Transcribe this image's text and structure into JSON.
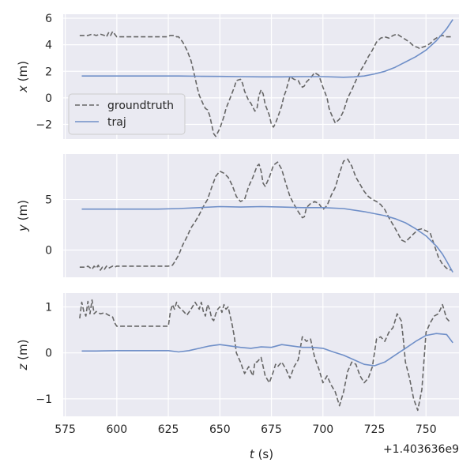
{
  "chart_data": {
    "type": "line",
    "shared_x": {
      "label_var": "t",
      "label_unit": " (s)",
      "xlim": [
        574,
        766
      ],
      "ticks": [
        575,
        600,
        625,
        650,
        675,
        700,
        725,
        750
      ],
      "tick_labels": [
        "575",
        "600",
        "625",
        "650",
        "675",
        "700",
        "725",
        "750"
      ],
      "offset_text": "+1.403636e9"
    },
    "colors": {
      "groundtruth": "#666666",
      "traj": "#6f8fc8",
      "axes_bg": "#eaeaf2",
      "grid": "#ffffff"
    },
    "legend": {
      "placement": "lower-left of top panel",
      "entries": [
        {
          "label": "groundtruth",
          "style": "dashed"
        },
        {
          "label": "traj",
          "style": "solid"
        }
      ]
    },
    "panels": [
      {
        "ylabel_var": "x",
        "ylabel_unit": " (m)",
        "ylim": [
          -3.1,
          6.3
        ],
        "yticks": [
          -2,
          0,
          2,
          4,
          6
        ],
        "ytick_labels": [
          "−2",
          "0",
          "2",
          "4",
          "6"
        ],
        "series": [
          {
            "name": "groundtruth",
            "x": [
              582,
              586,
              588,
              590,
              592,
              594,
              595,
              596,
              597,
              598,
              600,
              605,
              610,
              615,
              620,
              624,
              626,
              628,
              629,
              630,
              632,
              634,
              636,
              638,
              639,
              640,
              642,
              643,
              644,
              645,
              646,
              647,
              648,
              649,
              650,
              652,
              653,
              654,
              656,
              657,
              658,
              660,
              661,
              662,
              664,
              665,
              666,
              667,
              668,
              669,
              670,
              671,
              672,
              674,
              675,
              676,
              677,
              678,
              680,
              681,
              682,
              684,
              686,
              688,
              689,
              690,
              691,
              692,
              694,
              696,
              698,
              700,
              702,
              703,
              704,
              706,
              708,
              710,
              711,
              712,
              714,
              716,
              718,
              720,
              722,
              724,
              726,
              728,
              730,
              732,
              734,
              736,
              738,
              740,
              742,
              744,
              746,
              747,
              748,
              750,
              752,
              754,
              756,
              758,
              760,
              762
            ],
            "y": [
              4.7,
              4.7,
              4.8,
              4.7,
              4.8,
              4.7,
              4.6,
              4.9,
              4.7,
              5.0,
              4.6,
              4.6,
              4.6,
              4.6,
              4.6,
              4.6,
              4.7,
              4.7,
              4.6,
              4.6,
              4.2,
              3.6,
              2.8,
              1.5,
              0.8,
              0.2,
              -0.5,
              -0.8,
              -0.9,
              -1.3,
              -2.0,
              -2.7,
              -2.9,
              -2.6,
              -2.3,
              -1.4,
              -0.8,
              -0.4,
              0.4,
              0.8,
              1.3,
              1.4,
              1.1,
              0.5,
              -0.2,
              -0.4,
              -0.7,
              -1.0,
              -0.8,
              0.2,
              0.6,
              0.3,
              -0.5,
              -1.3,
              -2.0,
              -2.2,
              -1.9,
              -1.5,
              -0.6,
              0.1,
              0.5,
              1.6,
              1.4,
              1.3,
              1.0,
              0.8,
              0.9,
              1.2,
              1.5,
              1.9,
              1.7,
              0.8,
              0.0,
              -0.8,
              -1.2,
              -1.9,
              -1.6,
              -1.0,
              -0.5,
              0.0,
              0.6,
              1.3,
              2.0,
              2.5,
              3.1,
              3.6,
              4.2,
              4.5,
              4.6,
              4.5,
              4.7,
              4.8,
              4.6,
              4.4,
              4.2,
              3.9,
              3.8,
              3.7,
              3.8,
              3.9,
              4.1,
              4.4,
              4.6,
              4.7,
              4.6,
              4.6
            ]
          },
          {
            "name": "traj",
            "x": [
              583,
              600,
              620,
              630,
              640,
              650,
              660,
              670,
              680,
              690,
              700,
              710,
              715,
              720,
              725,
              730,
              735,
              740,
              745,
              750,
              755,
              760,
              763
            ],
            "y": [
              1.65,
              1.65,
              1.65,
              1.65,
              1.63,
              1.62,
              1.6,
              1.58,
              1.58,
              1.6,
              1.6,
              1.55,
              1.58,
              1.65,
              1.8,
              2.0,
              2.3,
              2.7,
              3.1,
              3.6,
              4.3,
              5.2,
              5.9
            ]
          }
        ]
      },
      {
        "ylabel_var": "y",
        "ylabel_unit": " (m)",
        "ylim": [
          -2.7,
          9.5
        ],
        "yticks": [
          0,
          5
        ],
        "ytick_labels": [
          "0",
          "5"
        ],
        "series": [
          {
            "name": "groundtruth",
            "x": [
              582,
              585,
              586,
              588,
              589,
              590,
              591,
              592,
              593,
              594,
              595,
              596,
              597,
              598,
              599,
              600,
              602,
              605,
              610,
              615,
              620,
              625,
              627,
              628,
              630,
              632,
              634,
              636,
              638,
              640,
              642,
              644,
              646,
              648,
              650,
              652,
              654,
              656,
              658,
              660,
              662,
              664,
              666,
              668,
              669,
              670,
              671,
              672,
              674,
              676,
              678,
              680,
              682,
              684,
              686,
              688,
              690,
              691,
              692,
              694,
              696,
              698,
              700,
              702,
              704,
              706,
              708,
              710,
              712,
              714,
              716,
              718,
              720,
              722,
              724,
              726,
              728,
              730,
              732,
              734,
              736,
              738,
              740,
              742,
              744,
              746,
              748,
              750,
              752,
              754,
              756,
              758,
              760,
              762
            ],
            "y": [
              -1.7,
              -1.7,
              -1.6,
              -1.9,
              -1.6,
              -1.8,
              -1.5,
              -2.0,
              -1.7,
              -1.9,
              -1.6,
              -1.8,
              -1.7,
              -1.6,
              -1.7,
              -1.6,
              -1.6,
              -1.6,
              -1.6,
              -1.6,
              -1.6,
              -1.6,
              -1.5,
              -1.2,
              -0.5,
              0.5,
              1.3,
              2.2,
              2.8,
              3.5,
              4.3,
              5.0,
              6.2,
              7.3,
              7.8,
              7.6,
              7.2,
              6.4,
              5.3,
              4.8,
              5.0,
              6.3,
              7.2,
              8.3,
              8.5,
              7.8,
              6.6,
              6.3,
              7.2,
              8.4,
              8.7,
              8.0,
              6.6,
              5.3,
              4.5,
              3.8,
              3.2,
              3.3,
              4.2,
              4.6,
              4.8,
              4.6,
              4.0,
              4.4,
              5.4,
              6.2,
              7.6,
              8.8,
              9.0,
              8.3,
              7.2,
              6.5,
              5.8,
              5.3,
              5.0,
              4.8,
              4.5,
              4.0,
              3.2,
              2.5,
              1.8,
              1.0,
              0.8,
              1.2,
              1.6,
              2.0,
              2.1,
              1.9,
              1.7,
              0.5,
              -0.7,
              -1.4,
              -1.8,
              -2.0
            ]
          },
          {
            "name": "traj",
            "x": [
              583,
              600,
              620,
              630,
              640,
              650,
              660,
              670,
              680,
              690,
              700,
              710,
              720,
              730,
              735,
              740,
              745,
              750,
              755,
              758,
              760,
              763
            ],
            "y": [
              4.05,
              4.05,
              4.05,
              4.1,
              4.2,
              4.3,
              4.25,
              4.3,
              4.25,
              4.2,
              4.2,
              4.1,
              3.8,
              3.4,
              3.1,
              2.7,
              2.1,
              1.4,
              0.4,
              -0.4,
              -1.1,
              -2.2
            ]
          }
        ]
      },
      {
        "ylabel_var": "z",
        "ylabel_unit": " (m)",
        "ylim": [
          -1.38,
          1.3
        ],
        "yticks": [
          -1,
          0,
          1
        ],
        "ytick_labels": [
          "−1",
          "0",
          "1"
        ],
        "series": [
          {
            "name": "groundtruth",
            "x": [
              582,
              583,
              584,
              585,
              586,
              587,
              588,
              589,
              590,
              592,
              594,
              596,
              597,
              598,
              599,
              600,
              605,
              610,
              615,
              620,
              625,
              626,
              627,
              628,
              629,
              630,
              632,
              634,
              636,
              638,
              640,
              641,
              642,
              643,
              644,
              645,
              646,
              647,
              648,
              649,
              650,
              651,
              652,
              653,
              654,
              655,
              656,
              657,
              658,
              660,
              662,
              664,
              666,
              667,
              668,
              670,
              671,
              672,
              674,
              676,
              677,
              678,
              680,
              682,
              684,
              686,
              688,
              690,
              692,
              694,
              696,
              698,
              700,
              702,
              704,
              706,
              708,
              710,
              712,
              714,
              716,
              718,
              720,
              722,
              724,
              726,
              728,
              730,
              732,
              734,
              736,
              738,
              739,
              740,
              742,
              744,
              746,
              748,
              750,
              752,
              754,
              756,
              758,
              760,
              762
            ],
            "y": [
              0.75,
              1.1,
              0.9,
              0.8,
              1.12,
              0.85,
              1.15,
              0.85,
              0.9,
              0.85,
              0.87,
              0.82,
              0.8,
              0.78,
              0.65,
              0.58,
              0.58,
              0.58,
              0.58,
              0.58,
              0.58,
              0.9,
              1.05,
              0.95,
              1.1,
              1.0,
              0.92,
              0.82,
              0.95,
              1.1,
              0.95,
              1.1,
              0.9,
              0.8,
              1.05,
              0.95,
              0.75,
              0.7,
              0.85,
              0.95,
              1.0,
              0.88,
              1.05,
              0.95,
              1.0,
              0.8,
              0.6,
              0.35,
              0.0,
              -0.2,
              -0.45,
              -0.3,
              -0.5,
              -0.2,
              -0.2,
              -0.1,
              -0.3,
              -0.5,
              -0.65,
              -0.4,
              -0.25,
              -0.3,
              -0.2,
              -0.35,
              -0.55,
              -0.3,
              -0.15,
              0.35,
              0.25,
              0.3,
              -0.1,
              -0.35,
              -0.65,
              -0.5,
              -0.7,
              -0.85,
              -1.15,
              -0.85,
              -0.4,
              -0.2,
              -0.25,
              -0.5,
              -0.65,
              -0.55,
              -0.3,
              0.3,
              0.35,
              0.25,
              0.45,
              0.55,
              0.85,
              0.7,
              0.3,
              -0.2,
              -0.55,
              -1.0,
              -1.25,
              -0.8,
              0.45,
              0.65,
              0.8,
              0.85,
              1.05,
              0.75,
              0.65
            ]
          },
          {
            "name": "traj",
            "x": [
              583,
              590,
              600,
              610,
              620,
              625,
              630,
              635,
              640,
              645,
              650,
              655,
              660,
              665,
              670,
              675,
              680,
              685,
              690,
              695,
              700,
              705,
              710,
              715,
              720,
              725,
              730,
              735,
              740,
              745,
              750,
              755,
              760,
              763
            ],
            "y": [
              0.04,
              0.04,
              0.05,
              0.05,
              0.05,
              0.05,
              0.02,
              0.05,
              0.1,
              0.15,
              0.18,
              0.15,
              0.12,
              0.1,
              0.13,
              0.12,
              0.18,
              0.15,
              0.12,
              0.12,
              0.1,
              0.02,
              -0.05,
              -0.15,
              -0.25,
              -0.28,
              -0.2,
              -0.05,
              0.1,
              0.25,
              0.38,
              0.42,
              0.4,
              0.22
            ]
          }
        ]
      }
    ]
  }
}
